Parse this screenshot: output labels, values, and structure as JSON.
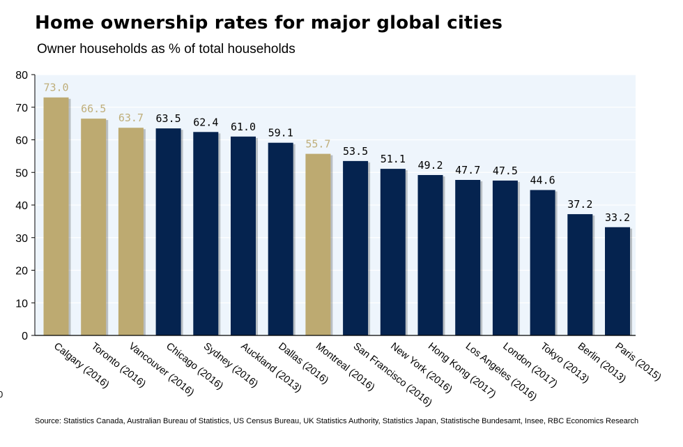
{
  "chart_data": {
    "type": "bar",
    "title": "Home ownership rates for major global cities",
    "subtitle": "Owner households as % of total households",
    "categories": [
      "Calgary (2016)",
      "Toronto (2016)",
      "Vancouver (2016)",
      "Chicago (2016)",
      "Sydney (2016)",
      "Auckland (2013)",
      "Dallas (2016)",
      "Montreal (2016)",
      "San Francisco (2016)",
      "New York (2016)",
      "Hong Kong (2017)",
      "Los Angeles (2016)",
      "London (2017)",
      "Tokyo (2013)",
      "Berlin (2013)",
      "Paris (2015)"
    ],
    "values": [
      73.0,
      66.5,
      63.7,
      63.5,
      62.4,
      61.0,
      59.1,
      55.7,
      53.5,
      51.1,
      49.2,
      47.7,
      47.5,
      44.6,
      37.2,
      33.2
    ],
    "value_labels": [
      "73.0",
      "66.5",
      "63.7",
      "63.5",
      "62.4",
      "61.0",
      "59.1",
      "55.7",
      "53.5",
      "51.1",
      "49.2",
      "47.7",
      "47.5",
      "44.6",
      "37.2",
      "33.2"
    ],
    "highlight": [
      true,
      true,
      true,
      false,
      false,
      false,
      false,
      true,
      false,
      false,
      false,
      false,
      false,
      false,
      false,
      false
    ],
    "ylim": [
      0,
      80
    ],
    "yticks": [
      "0",
      "10",
      "20",
      "30",
      "40",
      "50",
      "60",
      "70",
      "80"
    ],
    "xlabel": "",
    "ylabel": "",
    "grid": true,
    "legend": "none",
    "colors": {
      "highlight": "#BDAA71",
      "default": "#05234F",
      "highlight_label": "#BFAE7A",
      "default_label": "#000000",
      "plot_bg": "#EEF5FC",
      "grid": "#FFFFFF"
    }
  },
  "source": "Source:  Statistics Canada, Australian Bureau of Statistics, US Census Bureau, UK Statistics Authority, Statistics Japan, Statistische Bundesamt, Insee,  RBC Economics  Research",
  "stray_mark": "0"
}
